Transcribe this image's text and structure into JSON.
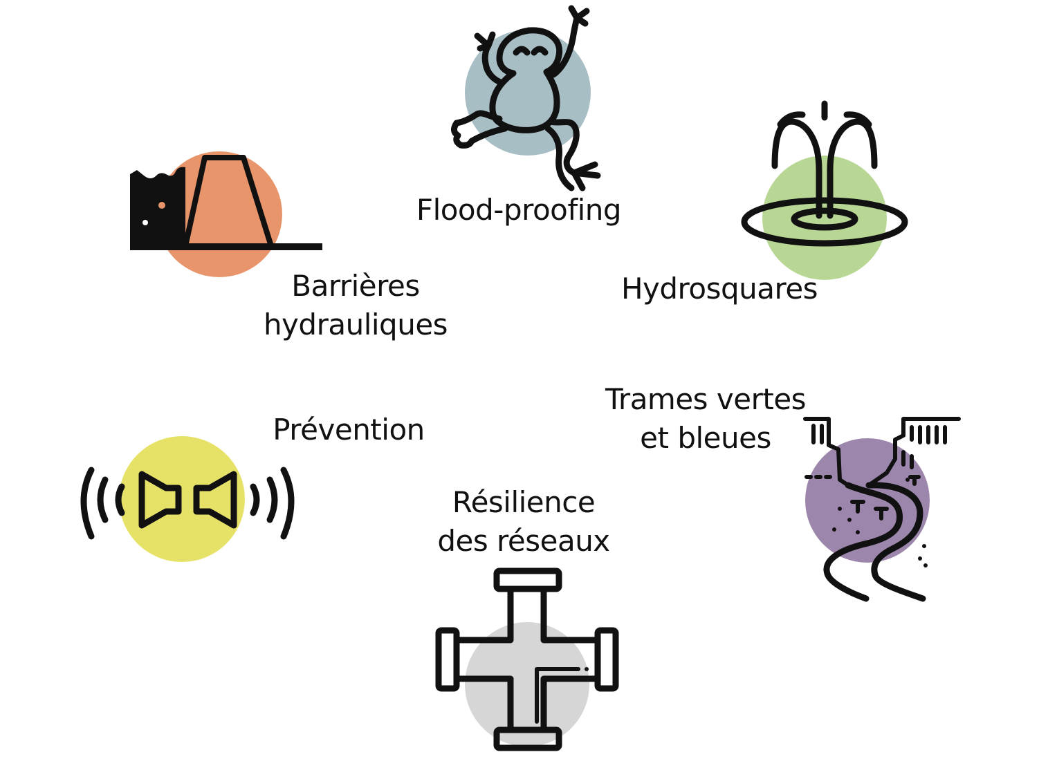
{
  "items": [
    {
      "id": "flood-proofing",
      "lines": [
        "Flood-proofing"
      ],
      "icon": "frog-icon",
      "color": "#A8BEC5"
    },
    {
      "id": "hydrosquares",
      "lines": [
        "Hydrosquares"
      ],
      "icon": "fountain-icon",
      "color": "#B9D794"
    },
    {
      "id": "barrieres",
      "lines": [
        "Barrières",
        "hydrauliques"
      ],
      "icon": "levee-icon",
      "color": "#E8956B"
    },
    {
      "id": "trames",
      "lines": [
        "Trames vertes",
        "et bleues"
      ],
      "icon": "river-valley-icon",
      "color": "#9C86AC"
    },
    {
      "id": "prevention",
      "lines": [
        "Prévention"
      ],
      "icon": "alarm-sirens-icon",
      "color": "#E6E268"
    },
    {
      "id": "resilience",
      "lines": [
        "Résilience",
        "des réseaux"
      ],
      "icon": "pipe-cross-icon",
      "color": "#D6D6D6"
    }
  ]
}
